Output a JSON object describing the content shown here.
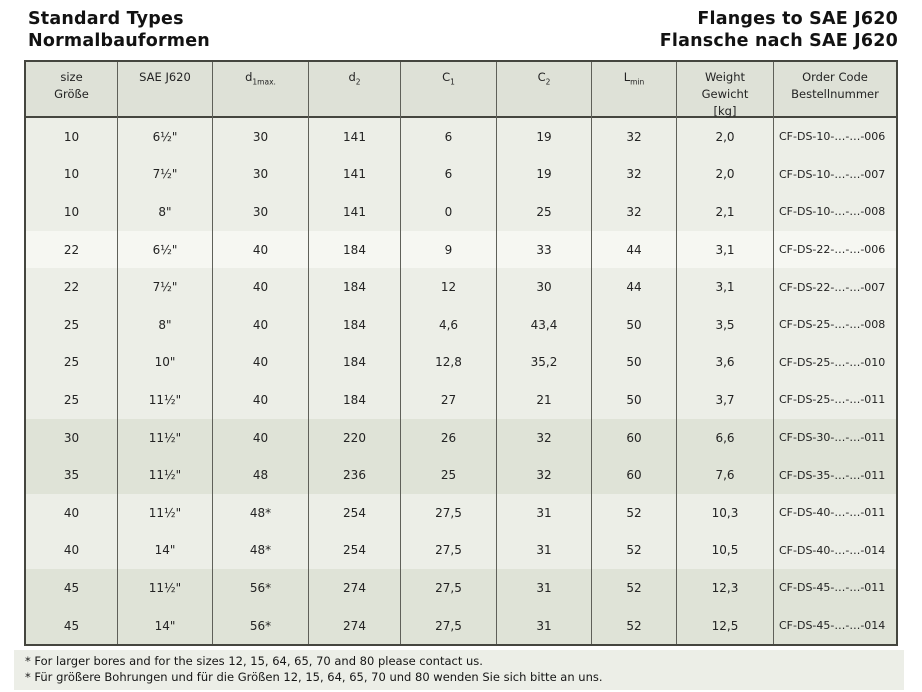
{
  "header": {
    "left_line1": "Standard Types",
    "left_line2": "Normalbauformen",
    "right_line1": "Flanges to SAE J620",
    "right_line2": "Flansche nach SAE J620"
  },
  "table": {
    "headers": [
      {
        "line1": "size",
        "line2": "Größe"
      },
      {
        "line1": "SAE J620"
      },
      {
        "main": "d",
        "sub": "1max."
      },
      {
        "main": "d",
        "sub": "2"
      },
      {
        "main": "C",
        "sub": "1"
      },
      {
        "main": "C",
        "sub": "2"
      },
      {
        "main": "L",
        "sub": "min"
      },
      {
        "line1": "Weight",
        "line2": "Gewicht",
        "line3": "[kg]"
      },
      {
        "line1": "Order Code",
        "line2": "Bestellnummer"
      }
    ],
    "rows": [
      {
        "shade": "light",
        "cells": [
          "10",
          "6½\"",
          "30",
          "141",
          "6",
          "19",
          "32",
          "2,0",
          "CF-DS-10-…-…-006"
        ]
      },
      {
        "shade": "light",
        "cells": [
          "10",
          "7½\"",
          "30",
          "141",
          "6",
          "19",
          "32",
          "2,0",
          "CF-DS-10-…-…-007"
        ]
      },
      {
        "shade": "light",
        "cells": [
          "10",
          "8\"",
          "30",
          "141",
          "0",
          "25",
          "32",
          "2,1",
          "CF-DS-10-…-…-008"
        ]
      },
      {
        "shade": "white",
        "cells": [
          "22",
          "6½\"",
          "40",
          "184",
          "9",
          "33",
          "44",
          "3,1",
          "CF-DS-22-…-…-006"
        ]
      },
      {
        "shade": "light",
        "cells": [
          "22",
          "7½\"",
          "40",
          "184",
          "12",
          "30",
          "44",
          "3,1",
          "CF-DS-22-…-…-007"
        ]
      },
      {
        "shade": "light",
        "cells": [
          "25",
          "8\"",
          "40",
          "184",
          "4,6",
          "43,4",
          "50",
          "3,5",
          "CF-DS-25-…-…-008"
        ]
      },
      {
        "shade": "light",
        "cells": [
          "25",
          "10\"",
          "40",
          "184",
          "12,8",
          "35,2",
          "50",
          "3,6",
          "CF-DS-25-…-…-010"
        ]
      },
      {
        "shade": "light",
        "cells": [
          "25",
          "11½\"",
          "40",
          "184",
          "27",
          "21",
          "50",
          "3,7",
          "CF-DS-25-…-…-011"
        ]
      },
      {
        "shade": "dark",
        "cells": [
          "30",
          "11½\"",
          "40",
          "220",
          "26",
          "32",
          "60",
          "6,6",
          "CF-DS-30-…-…-011"
        ]
      },
      {
        "shade": "dark",
        "cells": [
          "35",
          "11½\"",
          "48",
          "236",
          "25",
          "32",
          "60",
          "7,6",
          "CF-DS-35-…-…-011"
        ]
      },
      {
        "shade": "light",
        "cells": [
          "40",
          "11½\"",
          "48*",
          "254",
          "27,5",
          "31",
          "52",
          "10,3",
          "CF-DS-40-…-…-011"
        ]
      },
      {
        "shade": "light",
        "cells": [
          "40",
          "14\"",
          "48*",
          "254",
          "27,5",
          "31",
          "52",
          "10,5",
          "CF-DS-40-…-…-014"
        ]
      },
      {
        "shade": "dark",
        "cells": [
          "45",
          "11½\"",
          "56*",
          "274",
          "27,5",
          "31",
          "52",
          "12,3",
          "CF-DS-45-…-…-011"
        ]
      },
      {
        "shade": "dark",
        "cells": [
          "45",
          "14\"",
          "56*",
          "274",
          "27,5",
          "31",
          "52",
          "12,5",
          "CF-DS-45-…-…-014"
        ]
      }
    ]
  },
  "footnotes": [
    "* For larger bores and for the sizes 12, 15, 64, 65, 70 and 80 please contact us.",
    "* Für größere Bohrungen und für die Größen 12, 15, 64, 65, 70 und 80 wenden Sie sich bitte an uns."
  ],
  "colors": {
    "header_bg": "#dee1d7",
    "shade_light": "#eceee7",
    "shade_white": "#f6f7f2",
    "shade_dark": "#dfe3d7",
    "border_outer": "#45463f",
    "border_inner": "#5f6059"
  }
}
